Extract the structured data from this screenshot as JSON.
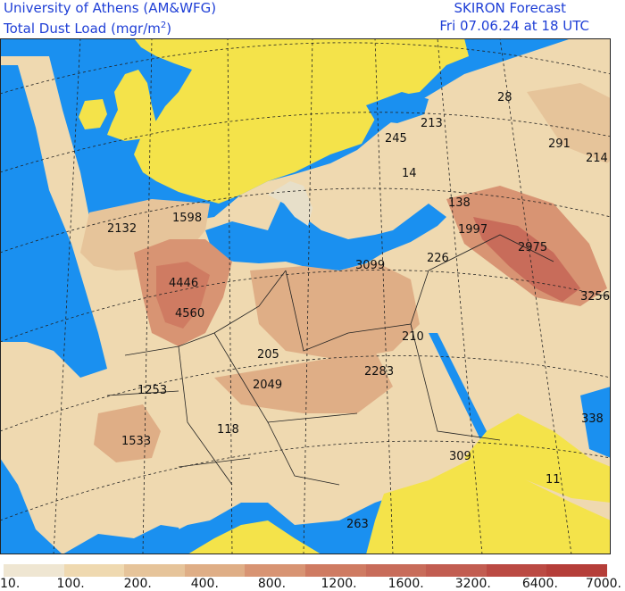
{
  "header": {
    "institution": "University of Athens (AM&WFG)",
    "product_prefix": "Total Dust Load (mgr/m",
    "product_exp": "2",
    "product_suffix": ")",
    "model": "SKIRON Forecast",
    "valid_time": "Fri 07.06.24 at 18 UTC"
  },
  "colors": {
    "sea": "#1a90f0",
    "land_low": "#f4e34a",
    "grid": "#222222"
  },
  "map_values": [
    {
      "label": "28"
    },
    {
      "label": "213"
    },
    {
      "label": "245"
    },
    {
      "label": "291"
    },
    {
      "label": "214"
    },
    {
      "label": "14"
    },
    {
      "label": "138"
    },
    {
      "label": "1598"
    },
    {
      "label": "2132"
    },
    {
      "label": "1997"
    },
    {
      "label": "2975"
    },
    {
      "label": "3099"
    },
    {
      "label": "226"
    },
    {
      "label": "4446"
    },
    {
      "label": "3256"
    },
    {
      "label": "4560"
    },
    {
      "label": "210"
    },
    {
      "label": "205"
    },
    {
      "label": "2283"
    },
    {
      "label": "1253"
    },
    {
      "label": "2049"
    },
    {
      "label": "118"
    },
    {
      "label": "338"
    },
    {
      "label": "1533"
    },
    {
      "label": "309"
    },
    {
      "label": "11"
    },
    {
      "label": "263"
    }
  ],
  "legend": {
    "colors": [
      "#efe6d2",
      "#efd9b0",
      "#e6c49a",
      "#dfae86",
      "#d89473",
      "#cf7b62",
      "#c86c5a",
      "#c25d51",
      "#bb4a43",
      "#b53e39"
    ],
    "labels": [
      "10.",
      "100.",
      "200.",
      "400.",
      "800.",
      "1200.",
      "1600.",
      "3200.",
      "6400.",
      "7000."
    ]
  }
}
